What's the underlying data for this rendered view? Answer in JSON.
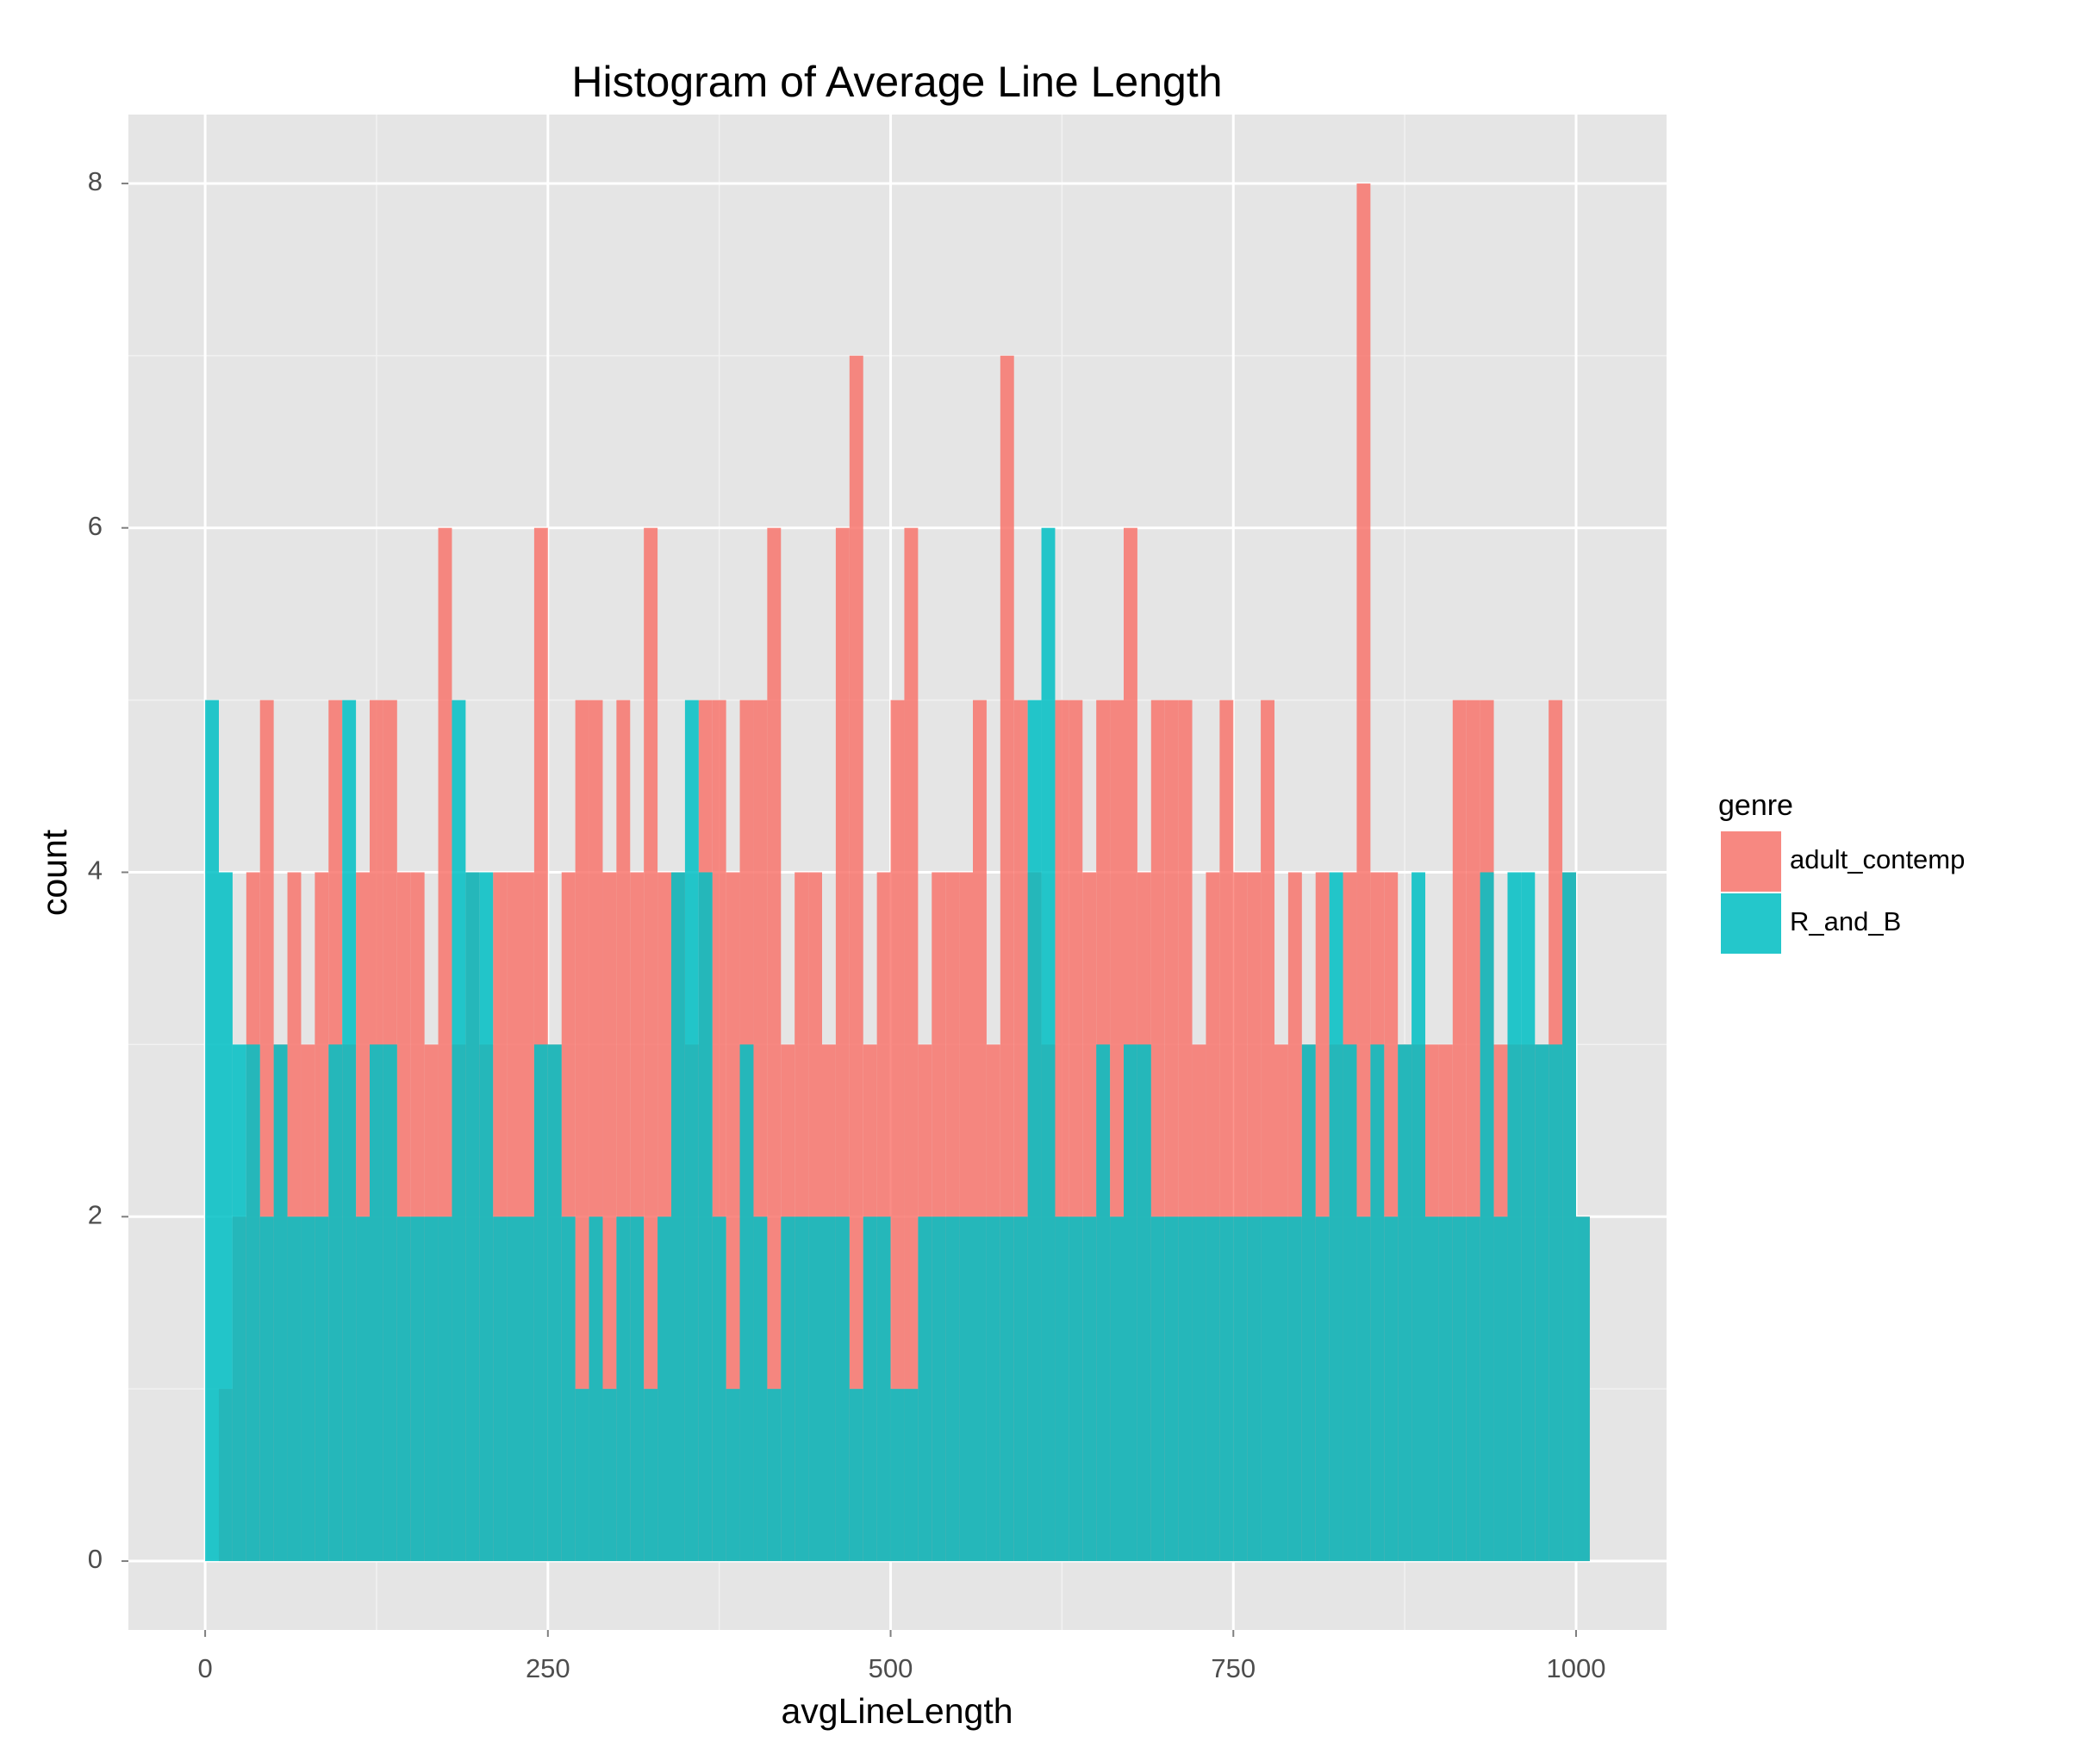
{
  "chart_data": {
    "type": "histogram",
    "title": "Histogram of Average Line Length",
    "x_label": "avgLineLength",
    "y_label": "count",
    "legend_title": "genre",
    "legend_position": "right",
    "alpha": 0.85,
    "bins": [
      0,
      10,
      20,
      30,
      40,
      50,
      60,
      70,
      80,
      90,
      100,
      110,
      120,
      130,
      140,
      150,
      160,
      170,
      180,
      190,
      200,
      210,
      220,
      230,
      240,
      250,
      260,
      270,
      280,
      290,
      300,
      310,
      320,
      330,
      340,
      350,
      360,
      370,
      380,
      390,
      400,
      410,
      420,
      430,
      440,
      450,
      460,
      470,
      480,
      490,
      500,
      510,
      520,
      530,
      540,
      550,
      560,
      570,
      580,
      590,
      600,
      610,
      620,
      630,
      640,
      650,
      660,
      670,
      680,
      690,
      700,
      710,
      720,
      730,
      740,
      750,
      760,
      770,
      780,
      790,
      800,
      810,
      820,
      830,
      840,
      850,
      860,
      870,
      880,
      890,
      900,
      910,
      920,
      930,
      940,
      950,
      960,
      970,
      980,
      990,
      1000,
      1010
    ],
    "series": [
      {
        "name": "adult_contemp",
        "color": "#f8766d",
        "values": [
          0,
          1,
          2,
          4,
          5,
          3,
          4,
          3,
          4,
          5,
          3,
          4,
          5,
          5,
          4,
          4,
          3,
          6,
          3,
          4,
          3,
          4,
          4,
          4,
          6,
          3,
          4,
          5,
          5,
          4,
          5,
          4,
          6,
          4,
          4,
          3,
          5,
          5,
          4,
          5,
          5,
          6,
          3,
          4,
          4,
          3,
          6,
          7,
          3,
          4,
          5,
          6,
          3,
          4,
          4,
          4,
          5,
          3,
          7,
          5,
          4,
          3,
          5,
          5,
          4,
          5,
          5,
          6,
          4,
          5,
          5,
          5,
          3,
          4,
          5,
          4,
          4,
          5,
          3,
          4,
          3,
          4,
          3,
          4,
          8,
          4,
          4,
          3,
          3,
          3,
          3,
          5,
          5,
          5,
          3,
          3,
          3,
          3,
          5,
          4,
          2
        ]
      },
      {
        "name": "R_and_B",
        "color": "#00bfc4",
        "values": [
          5,
          4,
          3,
          3,
          2,
          3,
          2,
          2,
          2,
          3,
          5,
          2,
          3,
          3,
          2,
          2,
          2,
          2,
          5,
          4,
          4,
          2,
          2,
          2,
          3,
          3,
          2,
          1,
          2,
          1,
          2,
          2,
          1,
          2,
          4,
          5,
          4,
          2,
          1,
          3,
          2,
          1,
          2,
          2,
          2,
          2,
          2,
          1,
          2,
          2,
          1,
          1,
          2,
          2,
          2,
          2,
          2,
          2,
          2,
          2,
          5,
          6,
          2,
          2,
          2,
          3,
          2,
          3,
          3,
          2,
          2,
          2,
          2,
          2,
          2,
          2,
          2,
          2,
          2,
          2,
          3,
          2,
          4,
          3,
          2,
          3,
          2,
          3,
          4,
          2,
          2,
          2,
          2,
          4,
          2,
          4,
          4,
          3,
          3,
          4,
          2
        ]
      }
    ],
    "xlim": [
      -56,
      1066
    ],
    "ylim": [
      -0.4,
      8.4
    ],
    "xticks": [
      0,
      250,
      500,
      750,
      1000
    ],
    "yticks": [
      0,
      2,
      4,
      6,
      8
    ],
    "x_minor_ticks": [
      125,
      375,
      625,
      875
    ],
    "y_minor_ticks": [
      1,
      3,
      5,
      7
    ],
    "grid": true
  }
}
